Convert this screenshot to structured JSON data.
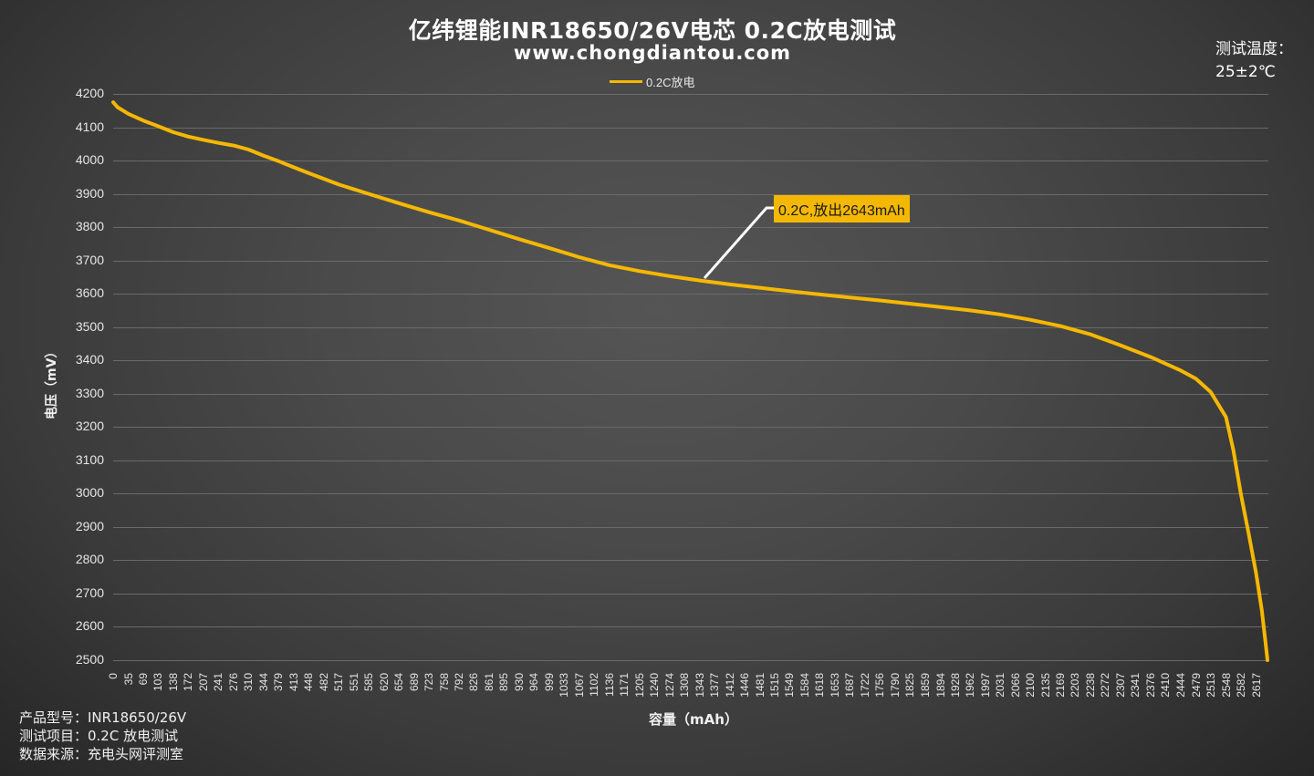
{
  "header": {
    "title": "亿纬锂能INR18650/26V电芯  0.2C放电测试",
    "subtitle": "www.chongdiantou.com",
    "temperature_label": "测试温度：",
    "temperature_value": "25±2℃"
  },
  "legend": {
    "series_label": "0.2C放电",
    "color": "#f5b800"
  },
  "annotation": {
    "text": "0.2C,放出2643mAh",
    "bg_color": "#f5b800"
  },
  "axes": {
    "ylabel": "电压（mV）",
    "xlabel": "容量（mAh）"
  },
  "info": {
    "line1": "产品型号：INR18650/26V",
    "line2": "测试项目：0.2C 放电测试",
    "line3": "数据来源：充电头网评测室"
  },
  "chart_data": {
    "type": "line",
    "title": "亿纬锂能INR18650/26V电芯  0.2C放电测试",
    "subtitle": "www.chongdiantou.com",
    "xlabel": "容量（mAh）",
    "ylabel": "电压（mV）",
    "ylim": [
      2500,
      4200
    ],
    "yticks": [
      4200,
      4100,
      4000,
      3900,
      3800,
      3700,
      3600,
      3500,
      3400,
      3300,
      3200,
      3100,
      3000,
      2900,
      2800,
      2700,
      2600,
      2500
    ],
    "xticks": [
      0,
      35,
      69,
      103,
      138,
      172,
      207,
      241,
      276,
      310,
      344,
      379,
      413,
      448,
      482,
      517,
      551,
      585,
      620,
      654,
      689,
      723,
      758,
      792,
      826,
      861,
      895,
      930,
      964,
      999,
      1033,
      1067,
      1102,
      1136,
      1171,
      1205,
      1240,
      1274,
      1308,
      1343,
      1377,
      1412,
      1446,
      1481,
      1515,
      1549,
      1584,
      1618,
      1653,
      1687,
      1722,
      1756,
      1790,
      1825,
      1859,
      1894,
      1928,
      1962,
      1997,
      2031,
      2066,
      2100,
      2135,
      2169,
      2203,
      2238,
      2272,
      2307,
      2341,
      2376,
      2410,
      2444,
      2479,
      2513,
      2548,
      2582,
      2617
    ],
    "grid": true,
    "legend_position": "top",
    "annotations": [
      "0.2C,放出2643mAh"
    ],
    "series": [
      {
        "name": "0.2C放电",
        "color": "#f5b800",
        "x": [
          0,
          10,
          35,
          69,
          103,
          138,
          172,
          207,
          241,
          276,
          310,
          344,
          379,
          413,
          448,
          517,
          585,
          654,
          723,
          792,
          861,
          930,
          999,
          1067,
          1136,
          1205,
          1274,
          1343,
          1412,
          1481,
          1549,
          1618,
          1687,
          1756,
          1825,
          1894,
          1962,
          2031,
          2100,
          2169,
          2238,
          2307,
          2376,
          2444,
          2479,
          2513,
          2548,
          2565,
          2582,
          2600,
          2617,
          2630,
          2638,
          2643
        ],
        "y": [
          4175,
          4160,
          4140,
          4120,
          4103,
          4085,
          4072,
          4062,
          4053,
          4045,
          4033,
          4015,
          3998,
          3980,
          3962,
          3928,
          3900,
          3872,
          3845,
          3820,
          3792,
          3764,
          3737,
          3710,
          3686,
          3668,
          3653,
          3640,
          3628,
          3618,
          3608,
          3598,
          3589,
          3580,
          3570,
          3560,
          3550,
          3538,
          3522,
          3503,
          3478,
          3445,
          3410,
          3370,
          3345,
          3305,
          3230,
          3130,
          3000,
          2880,
          2760,
          2650,
          2560,
          2500
        ]
      }
    ]
  }
}
